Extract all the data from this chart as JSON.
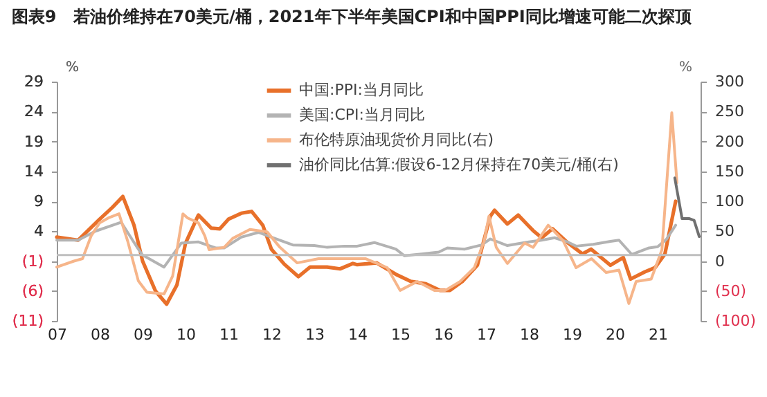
{
  "chart_data": {
    "type": "line",
    "title": "图表9　若油价维持在70美元/桶，2021年下半年美国CPI和中国PPI同比增速可能二次探顶",
    "ylabel": "%",
    "y2label": "%",
    "xlim": [
      2007,
      2022
    ],
    "xticks": [
      {
        "value": 2007,
        "label": "07"
      },
      {
        "value": 2008,
        "label": "08"
      },
      {
        "value": 2009,
        "label": "09"
      },
      {
        "value": 2010,
        "label": "10"
      },
      {
        "value": 2011,
        "label": "11"
      },
      {
        "value": 2012,
        "label": "12"
      },
      {
        "value": 2013,
        "label": "13"
      },
      {
        "value": 2014,
        "label": "14"
      },
      {
        "value": 2015,
        "label": "15"
      },
      {
        "value": 2016,
        "label": "16"
      },
      {
        "value": 2017,
        "label": "17"
      },
      {
        "value": 2018,
        "label": "18"
      },
      {
        "value": 2019,
        "label": "19"
      },
      {
        "value": 2020,
        "label": "20"
      },
      {
        "value": 2021,
        "label": "21"
      }
    ],
    "ylim": [
      -11,
      29
    ],
    "yticks": [
      {
        "value": -11,
        "label": "(11)"
      },
      {
        "value": -6,
        "label": "(6)"
      },
      {
        "value": -1,
        "label": "(1)"
      },
      4,
      9,
      14,
      19,
      24,
      29
    ],
    "y2lim": [
      -100,
      300
    ],
    "y2ticks": [
      {
        "value": -100,
        "label": "(100)"
      },
      {
        "value": -50,
        "label": "(50)"
      },
      0,
      50,
      100,
      150,
      200,
      250,
      300
    ],
    "ref_lines": [
      {
        "axis": "y",
        "value": 0,
        "color": "#bfbfbf"
      }
    ],
    "legend": "top",
    "grid": false,
    "marker": "none",
    "line_style": "solid",
    "series": [
      {
        "name": "中国:PPI:当月同比",
        "color": "#e8702a",
        "x": [
          2007.0,
          2007.5,
          2008.0,
          2008.3,
          2008.54,
          2008.8,
          2009.0,
          2009.3,
          2009.56,
          2009.8,
          2010.0,
          2010.3,
          2010.6,
          2010.8,
          2011.0,
          2011.3,
          2011.54,
          2011.8,
          2012.0,
          2012.3,
          2012.63,
          2012.9,
          2013.3,
          2013.6,
          2013.9,
          2014.0,
          2014.45,
          2014.9,
          2015.25,
          2015.6,
          2015.93,
          2016.16,
          2016.45,
          2016.8,
          2017.1,
          2017.2,
          2017.5,
          2017.75,
          2018.1,
          2018.3,
          2018.55,
          2018.9,
          2019.25,
          2019.45,
          2019.9,
          2020.2,
          2020.37,
          2020.7,
          2020.94,
          2021.17,
          2021.42
        ],
        "values": [
          3.0,
          2.5,
          6.0,
          8.0,
          9.8,
          5.0,
          -1.0,
          -6.0,
          -8.2,
          -5.0,
          2.0,
          6.7,
          4.5,
          4.4,
          6.0,
          7.0,
          7.3,
          5.0,
          1.0,
          -1.5,
          -3.6,
          -2.0,
          -2.0,
          -2.3,
          -1.4,
          -1.6,
          -1.3,
          -3.2,
          -4.4,
          -4.8,
          -5.9,
          -5.9,
          -4.4,
          -1.7,
          6.5,
          7.5,
          5.2,
          6.7,
          4.1,
          2.9,
          4.4,
          2.1,
          0.2,
          1.0,
          -1.7,
          -0.4,
          -4.0,
          -2.8,
          -2.1,
          0.2,
          9.0
        ]
      },
      {
        "name": "美国:CPI:当月同比",
        "color": "#b3b3b3",
        "x": [
          2007.0,
          2007.5,
          2007.9,
          2008.5,
          2008.9,
          2009.0,
          2009.5,
          2009.9,
          2010.3,
          2010.7,
          2010.9,
          2011.3,
          2011.7,
          2012.0,
          2012.5,
          2013.0,
          2013.3,
          2013.7,
          2014.0,
          2014.4,
          2014.9,
          2015.1,
          2015.5,
          2015.9,
          2016.1,
          2016.5,
          2016.9,
          2017.1,
          2017.5,
          2017.9,
          2018.3,
          2018.6,
          2018.9,
          2019.1,
          2019.5,
          2019.9,
          2020.1,
          2020.4,
          2020.8,
          2021.0,
          2021.2,
          2021.42
        ],
        "values": [
          2.5,
          2.5,
          4.0,
          5.5,
          1.0,
          0.0,
          -2.0,
          2.0,
          2.2,
          1.2,
          1.2,
          3.0,
          3.8,
          3.0,
          1.7,
          1.6,
          1.3,
          1.5,
          1.5,
          2.1,
          1.0,
          -0.1,
          0.2,
          0.5,
          1.2,
          1.0,
          1.7,
          2.7,
          1.6,
          2.1,
          2.5,
          2.9,
          2.2,
          1.5,
          1.8,
          2.3,
          2.5,
          0.1,
          1.2,
          1.4,
          2.6,
          5.0
        ]
      },
      {
        "name": "布伦特原油现货价月同比(右)",
        "color": "#f6b58a",
        "axis": "y2",
        "x": [
          2007.0,
          2007.4,
          2007.6,
          2007.8,
          2008.0,
          2008.2,
          2008.45,
          2008.65,
          2008.9,
          2009.1,
          2009.5,
          2009.7,
          2009.94,
          2010.05,
          2010.3,
          2010.45,
          2010.55,
          2010.9,
          2011.1,
          2011.5,
          2011.9,
          2012.2,
          2012.6,
          2013.1,
          2013.6,
          2014.0,
          2014.2,
          2014.7,
          2015.0,
          2015.4,
          2015.8,
          2016.05,
          2016.4,
          2016.73,
          2016.96,
          2017.07,
          2017.24,
          2017.5,
          2017.9,
          2018.1,
          2018.45,
          2018.8,
          2019.1,
          2019.46,
          2019.8,
          2020.1,
          2020.33,
          2020.5,
          2020.85,
          2021.1,
          2021.33,
          2021.45
        ],
        "values": [
          -10,
          0,
          4,
          42,
          64,
          72,
          79,
          34,
          -33,
          -52,
          -55,
          -25,
          79,
          72,
          64,
          42,
          19,
          23,
          38,
          53,
          49,
          23,
          -3,
          4,
          4,
          4,
          4,
          -11,
          -49,
          -34,
          -49,
          -49,
          -34,
          -11,
          34,
          75,
          23,
          -4,
          30,
          23,
          60,
          34,
          -11,
          4,
          -19,
          -15,
          -71,
          -34,
          -30,
          19,
          248,
          131
        ]
      },
      {
        "name": "油价同比估算:假设6-12月保持在70美元/桶(右)",
        "color": "#707070",
        "axis": "y2",
        "x": [
          2021.4,
          2021.57,
          2021.74,
          2021.85,
          2021.97
        ],
        "values": [
          139,
          71,
          71,
          68,
          41
        ]
      }
    ]
  }
}
